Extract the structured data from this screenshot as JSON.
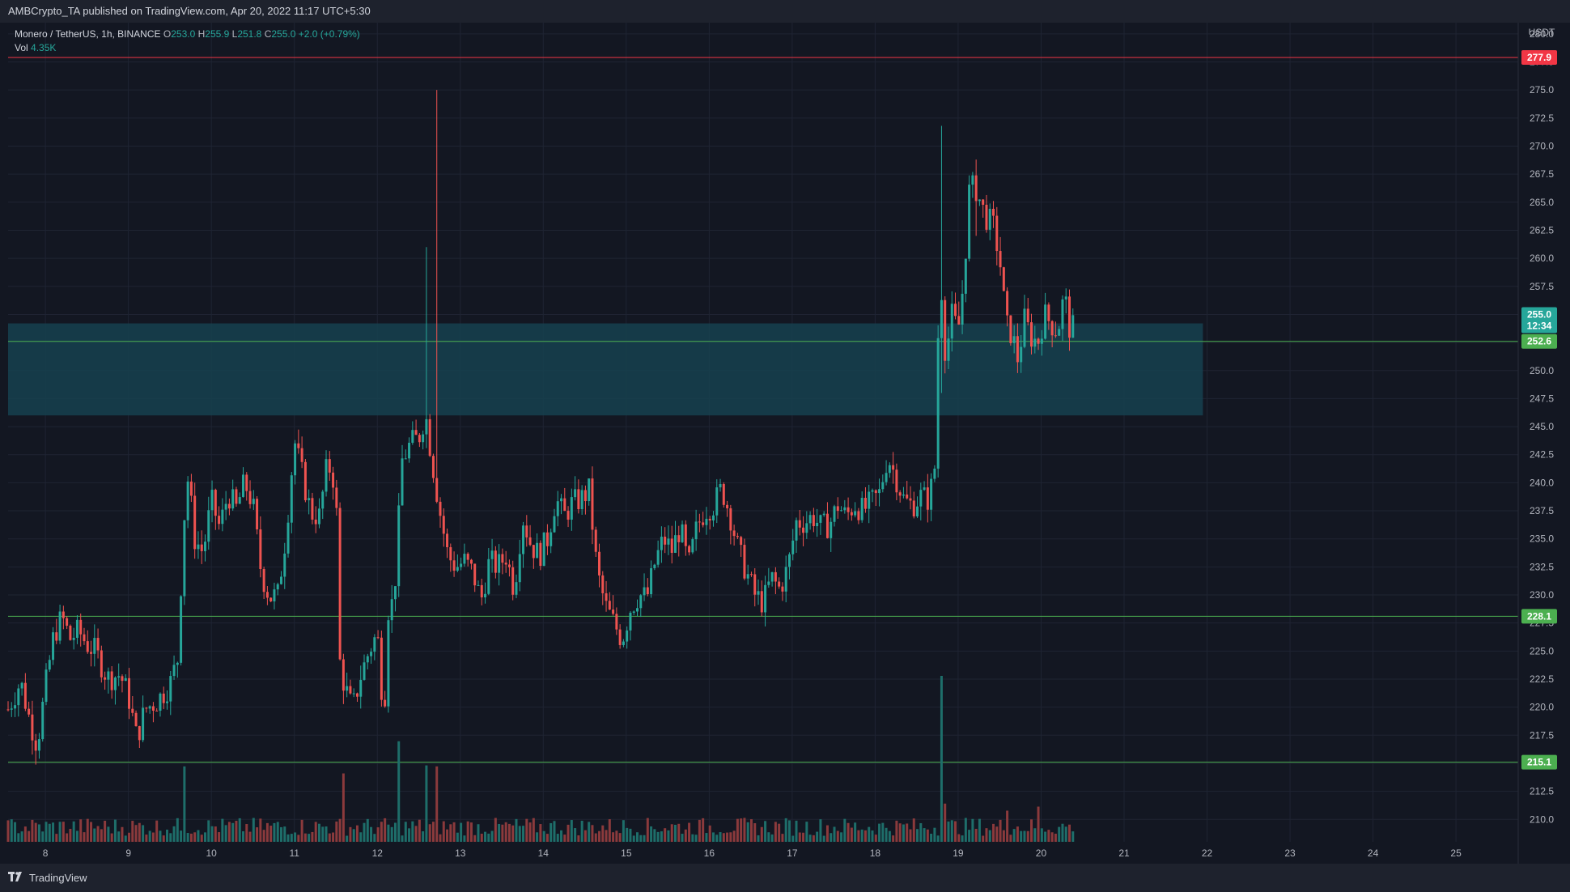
{
  "header": {
    "publisher_line": "AMBCrypto_TA published on TradingView.com, Apr 20, 2022 11:17 UTC+5:30"
  },
  "legend": {
    "pair": "Monero / TetherUS, 1h, BINANCE",
    "o_label": "O",
    "o_value": "253.0",
    "h_label": "H",
    "h_value": "255.9",
    "l_label": "L",
    "l_value": "251.8",
    "c_label": "C",
    "c_value": "255.0",
    "change": "+2.0 (+0.79%)",
    "vol_label": "Vol",
    "vol_value": "4.35K"
  },
  "footer": {
    "brand": "TradingView",
    "logo_icon": "tradingview-logo-icon"
  },
  "colors": {
    "background": "#131722",
    "grid": "#1f2433",
    "up": "#26a69a",
    "down": "#ef5350",
    "up_volume": "#1e6e6a",
    "down_volume": "#8b3a3c",
    "zone_fill": "#16414f",
    "resistance_line": "#f23645",
    "support_line": "#4caf50",
    "price_tag": "#26a69a"
  },
  "chart_data": {
    "type": "candlestick",
    "symbol": "Monero / TetherUS",
    "interval": "1h",
    "exchange": "BINANCE",
    "currency": "USDT",
    "y_range": [
      208,
      281
    ],
    "y_ticks": [
      "210.0",
      "212.5",
      "215.0",
      "217.5",
      "220.0",
      "222.5",
      "225.0",
      "227.5",
      "230.0",
      "232.5",
      "235.0",
      "237.5",
      "240.0",
      "242.5",
      "245.0",
      "247.5",
      "250.0",
      "252.5",
      "255.0",
      "257.5",
      "260.0",
      "262.5",
      "265.0",
      "267.5",
      "270.0",
      "272.5",
      "275.0",
      "277.5",
      "280.0"
    ],
    "x_ticks": [
      "8",
      "9",
      "10",
      "11",
      "12",
      "13",
      "14",
      "15",
      "16",
      "17",
      "18",
      "19",
      "20",
      "21",
      "22",
      "23",
      "24",
      "25"
    ],
    "x_range_days": [
      7.55,
      25.75
    ],
    "horizontal_levels": [
      {
        "value": 277.9,
        "label": "277.9",
        "kind": "resistance"
      },
      {
        "value": 252.6,
        "label": "252.6",
        "kind": "support"
      },
      {
        "value": 228.1,
        "label": "228.1",
        "kind": "support"
      },
      {
        "value": 215.1,
        "label": "215.1",
        "kind": "support"
      }
    ],
    "zone": {
      "low": 246.0,
      "high": 254.2,
      "from_day": 7.55,
      "to_day": 21.95
    },
    "last_price": {
      "value": "255.0",
      "countdown": "12:34"
    },
    "price_path": [
      [
        7.55,
        219.8
      ],
      [
        7.7,
        222.3
      ],
      [
        7.8,
        219.2
      ],
      [
        7.9,
        216.6
      ],
      [
        8.0,
        221.8
      ],
      [
        8.1,
        226.4
      ],
      [
        8.2,
        228.0
      ],
      [
        8.3,
        226.1
      ],
      [
        8.4,
        226.8
      ],
      [
        8.5,
        225.6
      ],
      [
        8.6,
        225.0
      ],
      [
        8.75,
        222.6
      ],
      [
        8.9,
        222.9
      ],
      [
        9.0,
        221.0
      ],
      [
        9.1,
        217.2
      ],
      [
        9.2,
        219.8
      ],
      [
        9.35,
        220.6
      ],
      [
        9.5,
        222.0
      ],
      [
        9.6,
        224.5
      ],
      [
        9.66,
        236.0
      ],
      [
        9.72,
        240.5
      ],
      [
        9.8,
        235.0
      ],
      [
        9.9,
        233.8
      ],
      [
        10.0,
        238.4
      ],
      [
        10.1,
        236.0
      ],
      [
        10.2,
        239.0
      ],
      [
        10.3,
        237.7
      ],
      [
        10.4,
        240.0
      ],
      [
        10.5,
        238.1
      ],
      [
        10.6,
        232.0
      ],
      [
        10.7,
        229.8
      ],
      [
        10.8,
        230.0
      ],
      [
        10.9,
        235.5
      ],
      [
        11.0,
        243.8
      ],
      [
        11.1,
        240.5
      ],
      [
        11.2,
        237.3
      ],
      [
        11.3,
        237.0
      ],
      [
        11.4,
        241.8
      ],
      [
        11.5,
        239.8
      ],
      [
        11.55,
        224.0
      ],
      [
        11.6,
        222.0
      ],
      [
        11.7,
        219.8
      ],
      [
        11.8,
        222.8
      ],
      [
        11.9,
        225.0
      ],
      [
        12.0,
        226.6
      ],
      [
        12.08,
        219.0
      ],
      [
        12.13,
        228.7
      ],
      [
        12.2,
        229.5
      ],
      [
        12.3,
        242.0
      ],
      [
        12.4,
        243.5
      ],
      [
        12.5,
        244.0
      ],
      [
        12.58,
        246.2
      ],
      [
        12.65,
        242.5
      ],
      [
        12.75,
        237.6
      ],
      [
        12.85,
        233.5
      ],
      [
        12.95,
        232.5
      ],
      [
        13.05,
        233.0
      ],
      [
        13.15,
        232.0
      ],
      [
        13.25,
        229.5
      ],
      [
        13.35,
        233.0
      ],
      [
        13.45,
        232.5
      ],
      [
        13.55,
        233.5
      ],
      [
        13.65,
        230.5
      ],
      [
        13.75,
        237.0
      ],
      [
        13.85,
        234.5
      ],
      [
        13.95,
        233.5
      ],
      [
        14.05,
        235.0
      ],
      [
        14.15,
        238.6
      ],
      [
        14.25,
        237.0
      ],
      [
        14.35,
        238.2
      ],
      [
        14.45,
        238.5
      ],
      [
        14.55,
        239.3
      ],
      [
        14.65,
        232.0
      ],
      [
        14.75,
        229.0
      ],
      [
        14.85,
        227.5
      ],
      [
        14.95,
        226.0
      ],
      [
        15.05,
        228.8
      ],
      [
        15.15,
        230.0
      ],
      [
        15.25,
        229.8
      ],
      [
        15.35,
        233.0
      ],
      [
        15.45,
        235.0
      ],
      [
        15.55,
        234.0
      ],
      [
        15.65,
        236.0
      ],
      [
        15.75,
        232.5
      ],
      [
        15.85,
        236.0
      ],
      [
        15.95,
        237.6
      ],
      [
        16.05,
        238.0
      ],
      [
        16.15,
        239.5
      ],
      [
        16.25,
        237.2
      ],
      [
        16.35,
        234.0
      ],
      [
        16.45,
        232.0
      ],
      [
        16.55,
        230.0
      ],
      [
        16.65,
        229.3
      ],
      [
        16.75,
        231.5
      ],
      [
        16.85,
        230.5
      ],
      [
        16.95,
        232.5
      ],
      [
        17.05,
        236.5
      ],
      [
        17.15,
        236.5
      ],
      [
        17.25,
        237.0
      ],
      [
        17.35,
        236.0
      ],
      [
        17.45,
        236.3
      ],
      [
        17.55,
        238.0
      ],
      [
        17.65,
        237.0
      ],
      [
        17.75,
        238.1
      ],
      [
        17.85,
        237.5
      ],
      [
        17.95,
        238.2
      ],
      [
        18.05,
        239.0
      ],
      [
        18.15,
        242.4
      ],
      [
        18.25,
        240.5
      ],
      [
        18.35,
        238.4
      ],
      [
        18.45,
        238.0
      ],
      [
        18.55,
        238.8
      ],
      [
        18.65,
        238.5
      ],
      [
        18.72,
        241.5
      ],
      [
        18.78,
        259.6
      ],
      [
        18.85,
        251.0
      ],
      [
        18.92,
        255.0
      ],
      [
        19.0,
        253.5
      ],
      [
        19.08,
        259.0
      ],
      [
        19.12,
        265.8
      ],
      [
        19.2,
        266.5
      ],
      [
        19.3,
        264.3
      ],
      [
        19.35,
        263.5
      ],
      [
        19.42,
        263.0
      ],
      [
        19.5,
        260.0
      ],
      [
        19.58,
        254.0
      ],
      [
        19.65,
        253.2
      ],
      [
        19.72,
        251.0
      ],
      [
        19.8,
        254.5
      ],
      [
        19.88,
        253.0
      ],
      [
        19.96,
        252.5
      ],
      [
        20.04,
        255.0
      ],
      [
        20.12,
        254.2
      ],
      [
        20.2,
        253.5
      ],
      [
        20.28,
        256.8
      ],
      [
        20.36,
        253.0
      ],
      [
        20.42,
        255.0
      ]
    ],
    "spikes": [
      {
        "day": 12.58,
        "high": 261.0,
        "low": 246.0
      },
      {
        "day": 12.7,
        "high": 275.0,
        "low": 244.0
      },
      {
        "day": 18.78,
        "high": 271.8,
        "low": 248.0
      },
      {
        "day": 19.2,
        "high": 268.8,
        "low": 262.0
      }
    ],
    "volume_spikes": [
      {
        "day": 9.68,
        "value": 7.5
      },
      {
        "day": 11.58,
        "value": 6.8
      },
      {
        "day": 12.25,
        "value": 10.0
      },
      {
        "day": 12.6,
        "value": 7.6
      },
      {
        "day": 12.7,
        "value": 7.5
      },
      {
        "day": 18.78,
        "value": 16.5
      },
      {
        "day": 18.85,
        "value": 3.8
      },
      {
        "day": 19.6,
        "value": 3.1
      },
      {
        "day": 19.95,
        "value": 3.5
      }
    ]
  }
}
